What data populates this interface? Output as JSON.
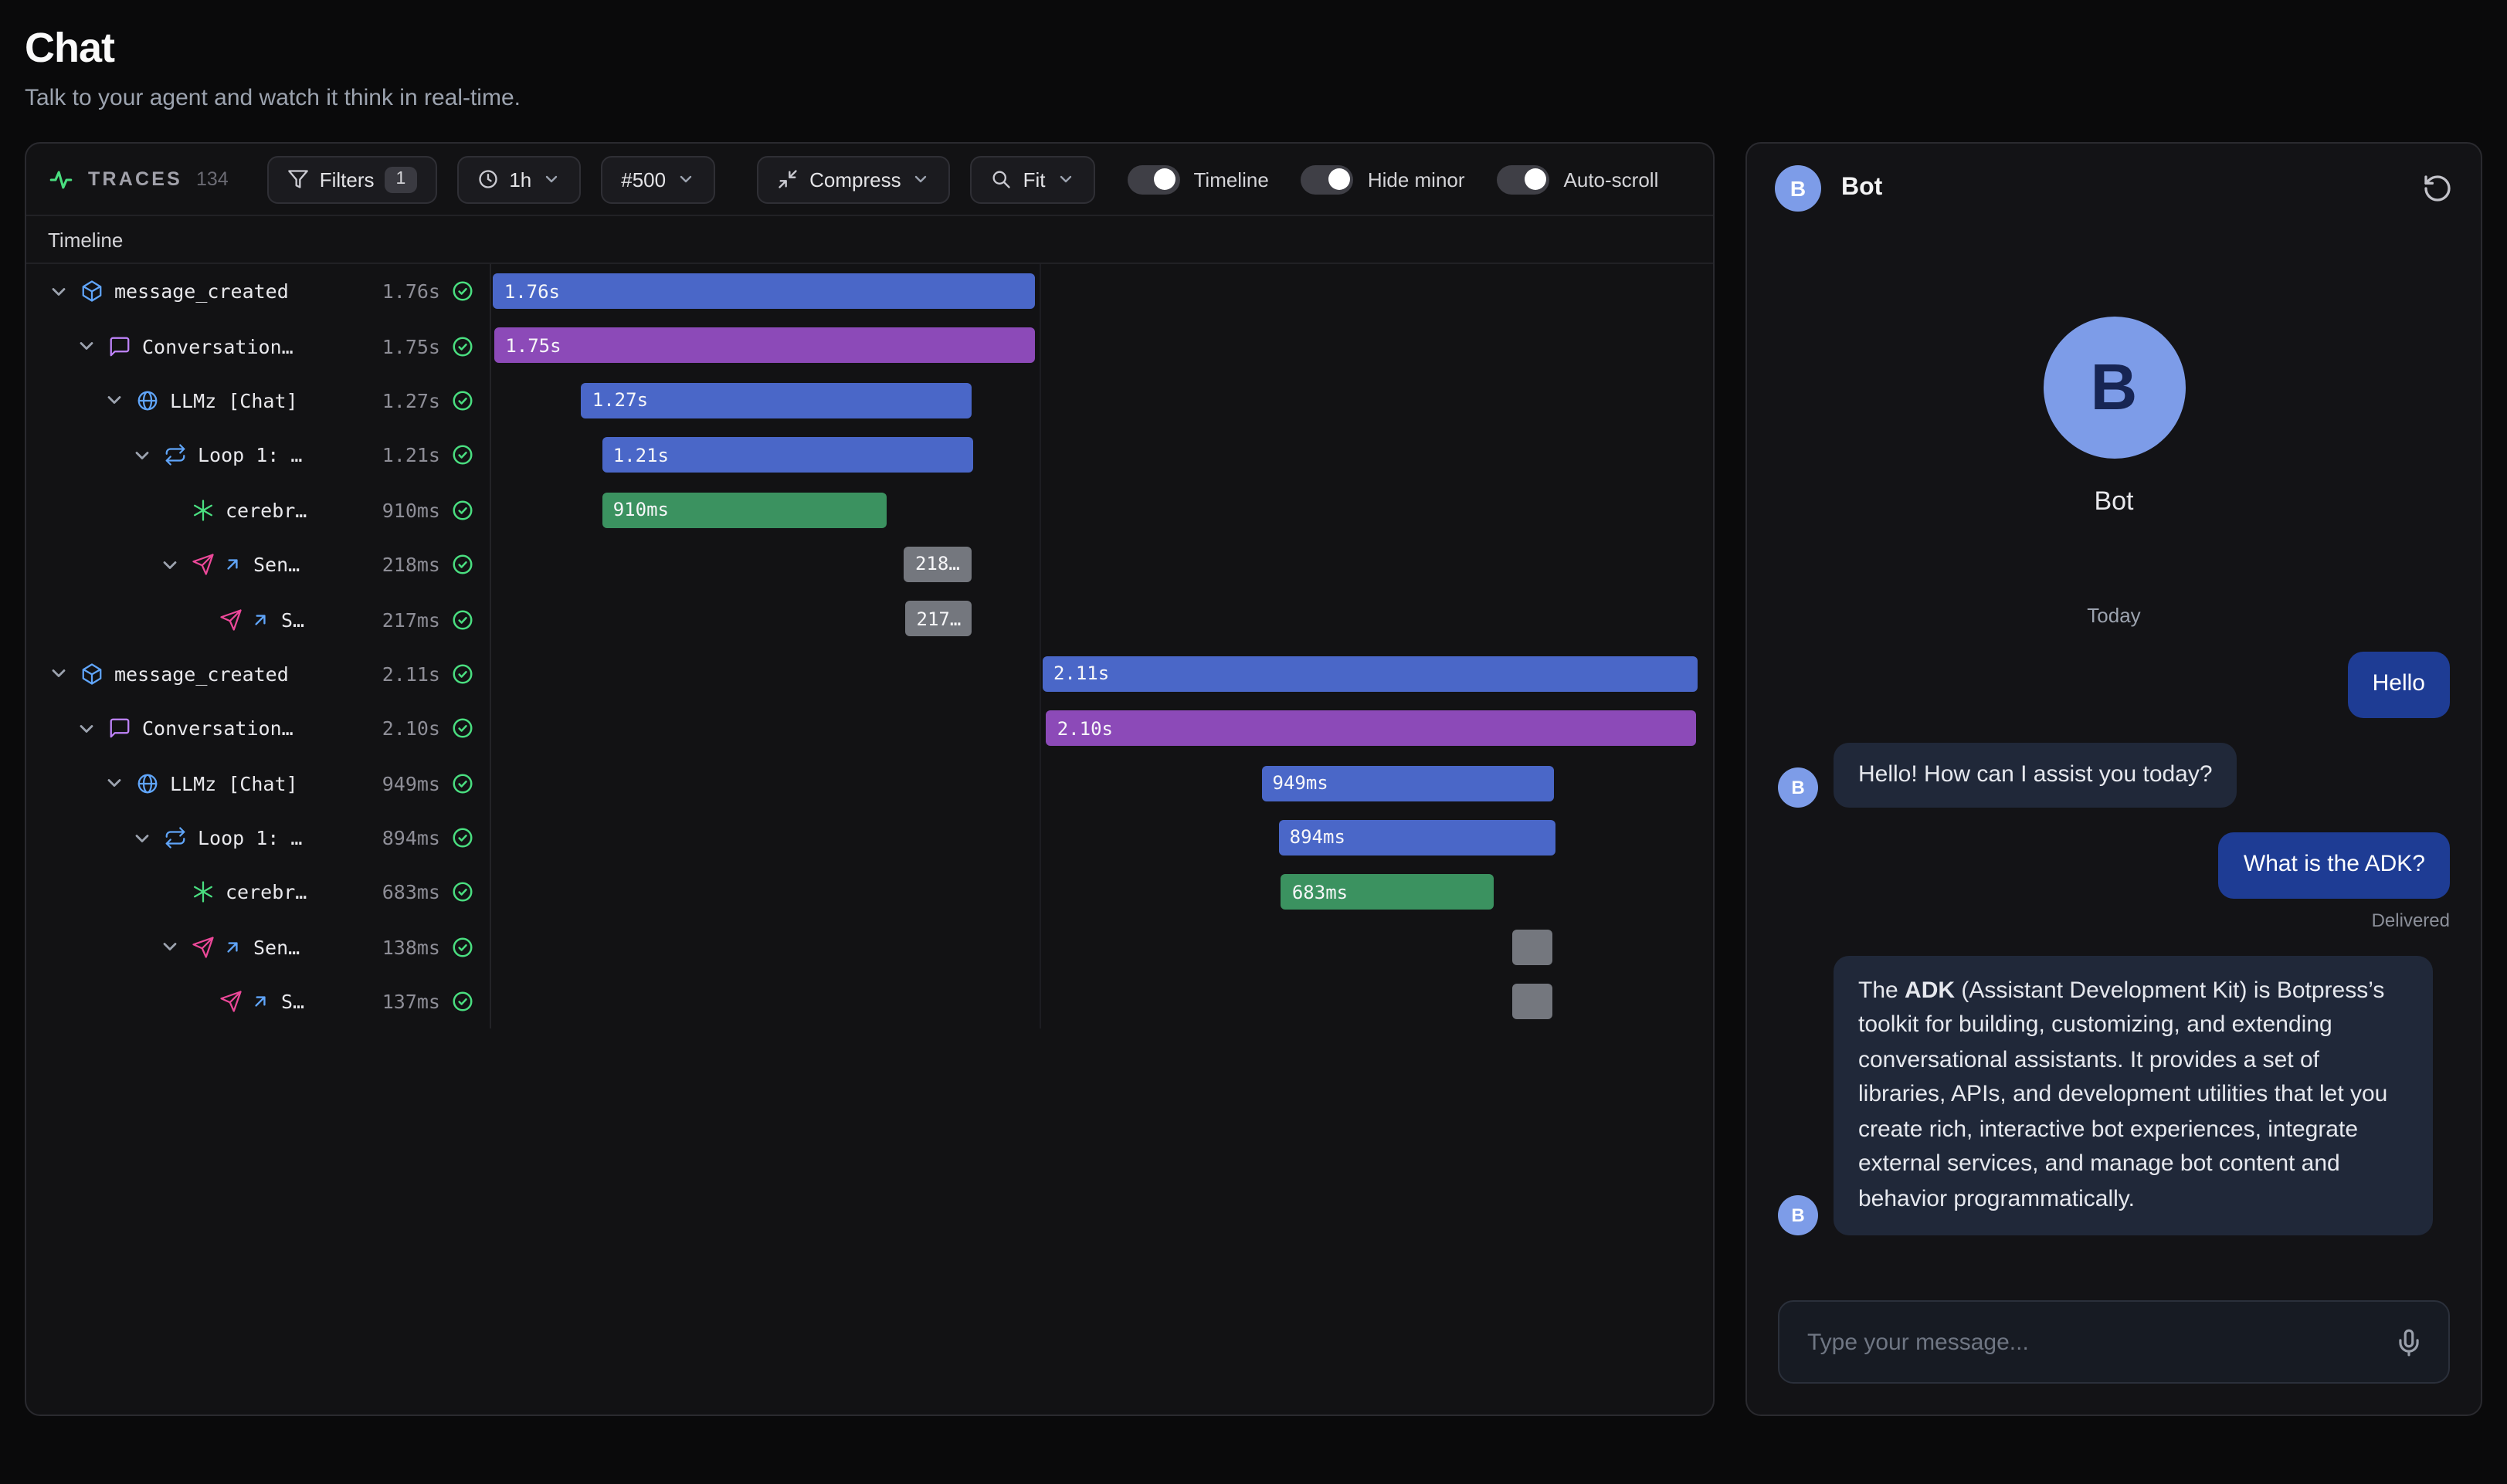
{
  "page": {
    "title": "Chat",
    "subtitle": "Talk to your agent and watch it think in real-time."
  },
  "toolbar": {
    "traces_label": "TRACES",
    "traces_count": "134",
    "filters_label": "Filters",
    "filters_badge": "1",
    "time_range_label": "1h",
    "limit_label": "#500",
    "compress_label": "Compress",
    "fit_label": "Fit",
    "toggles": [
      {
        "label": "Timeline",
        "on": true
      },
      {
        "label": "Hide minor",
        "on": true
      },
      {
        "label": "Auto-scroll",
        "on": true
      }
    ]
  },
  "timeline": {
    "header": "Timeline",
    "gridline_pct": 44.9
  },
  "traces": {
    "rows": [
      {
        "label": "message_created",
        "duration": "1.76s",
        "level": 0,
        "icon": "cube-icon",
        "chevron": true,
        "link": false,
        "bar": {
          "left": 0.3,
          "width": 44.3,
          "color": "blue",
          "label": "1.76s"
        }
      },
      {
        "label": "Conversation…",
        "duration": "1.75s",
        "level": 1,
        "icon": "chat-bubble-icon",
        "chevron": true,
        "link": false,
        "bar": {
          "left": 0.4,
          "width": 44.2,
          "color": "purple",
          "label": "1.75s"
        }
      },
      {
        "label": "LLMz [Chat]",
        "duration": "1.27s",
        "level": 2,
        "icon": "globe-icon",
        "chevron": true,
        "link": false,
        "bar": {
          "left": 7.5,
          "width": 31.9,
          "color": "blue",
          "label": "1.27s"
        }
      },
      {
        "label": "Loop 1: …",
        "duration": "1.21s",
        "level": 3,
        "icon": "loop-icon",
        "chevron": true,
        "link": false,
        "bar": {
          "left": 9.2,
          "width": 30.3,
          "color": "blue",
          "label": "1.21s"
        }
      },
      {
        "label": "cerebr…",
        "duration": "910ms",
        "level": 4,
        "icon": "sparkle-icon",
        "chevron": false,
        "link": false,
        "bar": {
          "left": 9.2,
          "width": 23.2,
          "color": "green",
          "label": "910ms"
        }
      },
      {
        "label": "Sen…",
        "duration": "218ms",
        "level": 4,
        "icon": "send-icon",
        "chevron": true,
        "link": true,
        "bar": {
          "left": 33.9,
          "width": 5.5,
          "color": "gray",
          "label": "218…"
        }
      },
      {
        "label": "S…",
        "duration": "217ms",
        "level": 5,
        "icon": "send-icon",
        "chevron": false,
        "link": true,
        "bar": {
          "left": 34.0,
          "width": 5.4,
          "color": "gray",
          "label": "217…"
        }
      },
      {
        "label": "message_created",
        "duration": "2.11s",
        "level": 0,
        "icon": "cube-icon",
        "chevron": true,
        "link": false,
        "bar": {
          "left": 45.2,
          "width": 53.5,
          "color": "blue",
          "label": "2.11s"
        }
      },
      {
        "label": "Conversation…",
        "duration": "2.10s",
        "level": 1,
        "icon": "chat-bubble-icon",
        "chevron": true,
        "link": false,
        "bar": {
          "left": 45.5,
          "width": 53.1,
          "color": "purple",
          "label": "2.10s"
        }
      },
      {
        "label": "LLMz [Chat]",
        "duration": "949ms",
        "level": 2,
        "icon": "globe-icon",
        "chevron": true,
        "link": false,
        "bar": {
          "left": 63.1,
          "width": 23.9,
          "color": "blue",
          "label": "949ms"
        }
      },
      {
        "label": "Loop 1: …",
        "duration": "894ms",
        "level": 3,
        "icon": "loop-icon",
        "chevron": true,
        "link": false,
        "bar": {
          "left": 64.5,
          "width": 22.6,
          "color": "blue",
          "label": "894ms"
        }
      },
      {
        "label": "cerebr…",
        "duration": "683ms",
        "level": 4,
        "icon": "sparkle-icon",
        "chevron": false,
        "link": false,
        "bar": {
          "left": 64.7,
          "width": 17.4,
          "color": "green",
          "label": "683ms"
        }
      },
      {
        "label": "Sen…",
        "duration": "138ms",
        "level": 4,
        "icon": "send-icon",
        "chevron": true,
        "link": true,
        "bar": {
          "left": 83.6,
          "width": 3.3,
          "color": "gray",
          "label": ""
        }
      },
      {
        "label": "S…",
        "duration": "137ms",
        "level": 5,
        "icon": "send-icon",
        "chevron": false,
        "link": true,
        "bar": {
          "left": 83.6,
          "width": 3.3,
          "color": "gray",
          "label": ""
        }
      }
    ]
  },
  "chat": {
    "bot_name": "Bot",
    "avatar_letter": "B",
    "date_divider": "Today",
    "messages": [
      {
        "role": "user",
        "text": "Hello"
      },
      {
        "role": "bot",
        "text": "Hello! How can I assist you today?"
      },
      {
        "role": "user",
        "text": "What is the ADK?"
      },
      {
        "role": "bot",
        "prefix": "The ",
        "bold": "ADK",
        "suffix": " (Assistant Development Kit) is Botpress’s toolkit for building, customizing, and extending conversational assistants. It provides a set of libraries, APIs, and development utilities that let you create rich, interactive bot experiences, integrate external services, and manage bot content and behavior programmatically."
      }
    ],
    "delivered_label": "Delivered",
    "input_placeholder": "Type your message..."
  },
  "colors": {
    "bar_blue": "#4a67c8",
    "bar_purple": "#8c4ab8",
    "bar_green": "#3b9260",
    "bar_gray": "#74777e",
    "check_green": "#4ade80",
    "avatar_blue": "#7d9ce8",
    "user_bubble_blue": "#1e3c94",
    "bot_bubble": "#202839",
    "icon_blue": "#60a5fa",
    "icon_purple": "#c084fc",
    "icon_pink": "#ec4899"
  }
}
